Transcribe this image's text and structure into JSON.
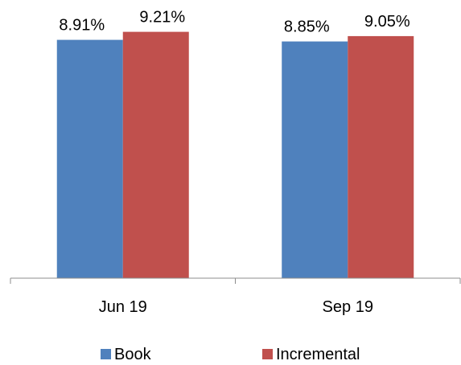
{
  "chart_data": {
    "type": "bar",
    "categories": [
      "Jun 19",
      "Sep 19"
    ],
    "series": [
      {
        "name": "Book",
        "values": [
          8.91,
          8.85
        ],
        "labels": [
          "8.91%",
          "8.85%"
        ],
        "color": "#4f81bd"
      },
      {
        "name": "Incremental",
        "values": [
          9.21,
          9.05
        ],
        "labels": [
          "9.21%",
          "9.05%"
        ],
        "color": "#c0504d"
      }
    ],
    "ylim": [
      0,
      10.4
    ],
    "grid": false,
    "legend_position": "bottom",
    "title": "",
    "xlabel": "",
    "ylabel": ""
  }
}
